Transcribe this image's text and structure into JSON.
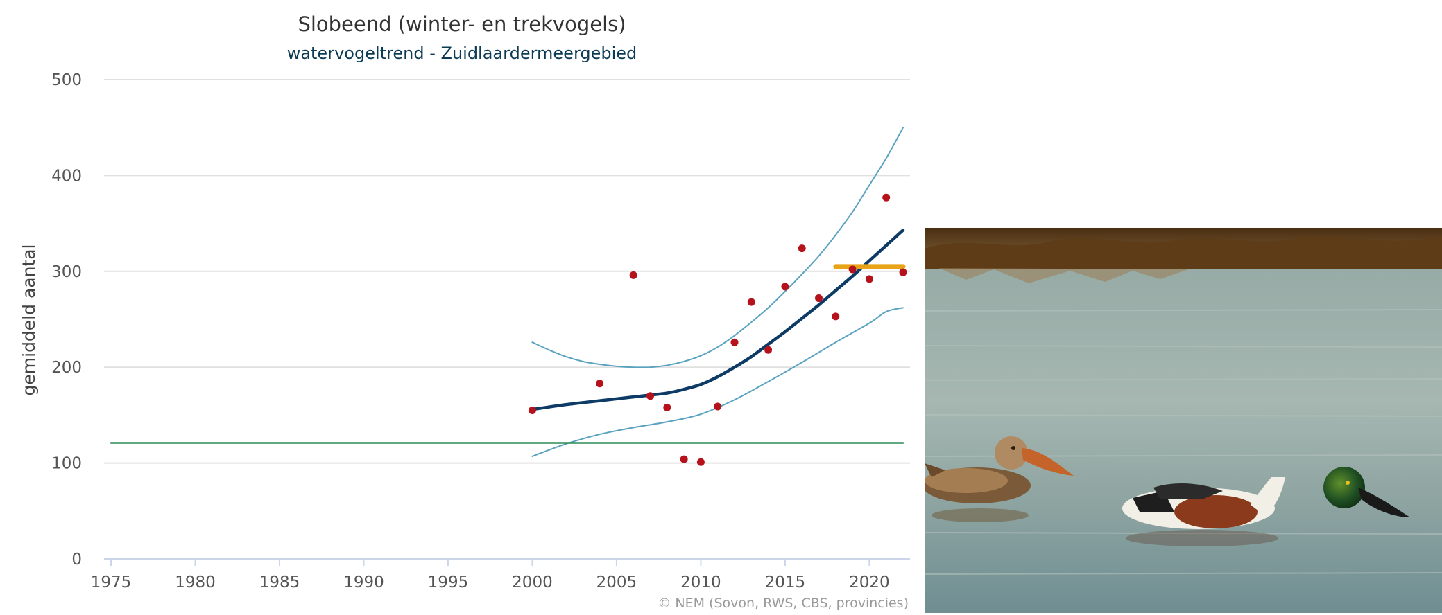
{
  "chart_data": {
    "type": "line",
    "title": "Slobeend (winter- en trekvogels)",
    "subtitle": "watervogeltrend - Zuidlaardermeergebied",
    "xlabel": "",
    "ylabel": "gemiddeld aantal",
    "xlim": [
      1975,
      2022
    ],
    "ylim": [
      0,
      500
    ],
    "x_ticks": [
      "1975",
      "1980",
      "1985",
      "1990",
      "1995",
      "2000",
      "2005",
      "2010",
      "2015",
      "2020"
    ],
    "y_ticks": [
      "0",
      "100",
      "200",
      "300",
      "400",
      "500"
    ],
    "credits": "© NEM (Sovon, RWS, CBS, provincies)",
    "colors": {
      "trend": "#0d3b66",
      "confidence": "#5aa3c0",
      "points": "#b5121b",
      "reference": "#2e8b57",
      "recent_mean": "#e8a317"
    },
    "series": [
      {
        "name": "trend",
        "x": [
          2000,
          2002,
          2004,
          2006,
          2008,
          2009,
          2010,
          2011,
          2012,
          2013,
          2014,
          2015,
          2016,
          2017,
          2018,
          2019,
          2020,
          2021,
          2022
        ],
        "values": [
          156,
          161,
          165,
          169,
          173,
          177,
          182,
          190,
          200,
          211,
          224,
          237,
          251,
          265,
          280,
          295,
          311,
          327,
          343
        ]
      },
      {
        "name": "upper_bound",
        "x": [
          2000,
          2001,
          2002,
          2003,
          2004,
          2005,
          2006,
          2007,
          2008,
          2009,
          2010,
          2011,
          2012,
          2013,
          2014,
          2015,
          2016,
          2017,
          2018,
          2019,
          2020,
          2021,
          2022
        ],
        "values": [
          226,
          218,
          211,
          206,
          203,
          201,
          200,
          200,
          202,
          206,
          212,
          221,
          233,
          247,
          262,
          279,
          297,
          316,
          338,
          362,
          390,
          418,
          450
        ]
      },
      {
        "name": "lower_bound",
        "x": [
          2000,
          2002,
          2004,
          2006,
          2008,
          2010,
          2012,
          2014,
          2016,
          2018,
          2020,
          2021,
          2022
        ],
        "values": [
          107,
          120,
          130,
          137,
          143,
          151,
          166,
          185,
          205,
          226,
          246,
          258,
          262
        ]
      },
      {
        "name": "observed",
        "x": [
          2000,
          2004,
          2006,
          2007,
          2008,
          2009,
          2010,
          2011,
          2012,
          2013,
          2014,
          2015,
          2016,
          2017,
          2018,
          2019,
          2020,
          2021,
          2022
        ],
        "values": [
          155,
          183,
          296,
          170,
          158,
          104,
          101,
          159,
          226,
          268,
          218,
          284,
          324,
          272,
          253,
          302,
          292,
          377,
          299
        ]
      },
      {
        "name": "reference_level",
        "x": [
          1975,
          2022
        ],
        "values": [
          121,
          121
        ]
      },
      {
        "name": "recent_mean",
        "x": [
          2018,
          2022
        ],
        "values": [
          305,
          305
        ]
      }
    ]
  },
  "photo": {
    "icon": "northern-shoveler-photo"
  }
}
